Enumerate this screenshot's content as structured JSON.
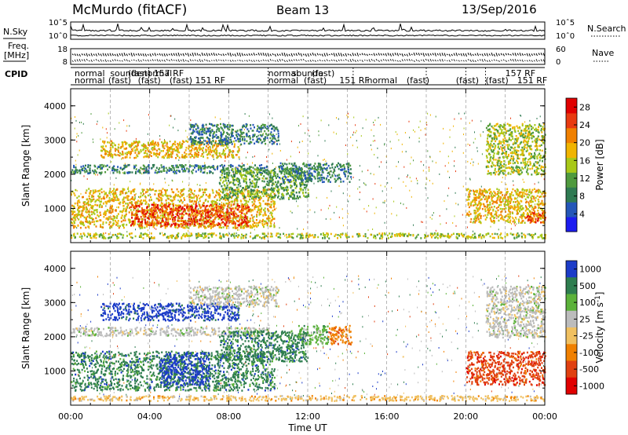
{
  "header": {
    "station": "McMurdo (fitACF)",
    "beam": "Beam 13",
    "date": "13/Sep/2016"
  },
  "aux_panel": {
    "nsky_label": "N.Sky",
    "nsearch_label": "N.Search",
    "freq_label": [
      "Freq.",
      "[MHz]"
    ],
    "nave_label": "Nave",
    "cpid_label": "CPID",
    "left_ticks": [
      "10^5",
      "10^0",
      "18",
      "8"
    ],
    "right_ticks": [
      "10^5",
      "10^0",
      "60",
      "0"
    ]
  },
  "cpid_labels": [
    {
      "t": 0.2,
      "row": 0,
      "text": "normal"
    },
    {
      "t": 2.0,
      "row": 0,
      "text": "sounde"
    },
    {
      "t": 2.9,
      "row": 0,
      "text": "(fast)"
    },
    {
      "t": 3.6,
      "row": 0,
      "text": "normal"
    },
    {
      "t": 4.2,
      "row": 0,
      "text": "157 RF"
    },
    {
      "t": 0.2,
      "row": 1,
      "text": "normal"
    },
    {
      "t": 1.9,
      "row": 1,
      "text": "(fast)"
    },
    {
      "t": 3.4,
      "row": 1,
      "text": "(fast)"
    },
    {
      "t": 5.0,
      "row": 1,
      "text": "(fast)"
    },
    {
      "t": 6.3,
      "row": 1,
      "text": "151 RF"
    },
    {
      "t": 10.0,
      "row": 0,
      "text": "normal"
    },
    {
      "t": 11.2,
      "row": 0,
      "text": "sounde"
    },
    {
      "t": 12.2,
      "row": 0,
      "text": "(fast)"
    },
    {
      "t": 10.0,
      "row": 1,
      "text": "normal"
    },
    {
      "t": 11.8,
      "row": 1,
      "text": "(fast)"
    },
    {
      "t": 13.6,
      "row": 1,
      "text": "151 RF"
    },
    {
      "t": 15.0,
      "row": 1,
      "text": "normal"
    },
    {
      "t": 17.0,
      "row": 1,
      "text": "(fast)"
    },
    {
      "t": 19.5,
      "row": 1,
      "text": "(fast)"
    },
    {
      "t": 21.0,
      "row": 1,
      "text": "(fast)"
    },
    {
      "t": 22.0,
      "row": 0,
      "text": "157 RF"
    },
    {
      "t": 22.6,
      "row": 1,
      "text": "151 RF"
    }
  ],
  "chart_data": [
    {
      "type": "heatmap",
      "name": "Power",
      "ylabel": "Slant Range [km]",
      "ylim": [
        0,
        4500
      ],
      "yticks": [
        1000,
        2000,
        3000,
        4000
      ],
      "xlim": [
        0,
        24
      ],
      "colorbar": {
        "label": "Power [dB]",
        "ticks": [
          4,
          8,
          12,
          16,
          20,
          24,
          28
        ],
        "range": [
          0,
          30
        ]
      },
      "colors": [
        "#1c1cf0",
        "#2456b8",
        "#2f7a52",
        "#4f9a3e",
        "#a8c818",
        "#f0b400",
        "#f08000",
        "#e83a10",
        "#e00000"
      ],
      "regions": [
        {
          "t0": 0.0,
          "t1": 10.3,
          "r0": 450,
          "r1": 1600,
          "v": 18
        },
        {
          "t0": 3.0,
          "t1": 9.0,
          "r0": 500,
          "r1": 1150,
          "v": 26
        },
        {
          "t0": 1.5,
          "t1": 8.5,
          "r0": 2500,
          "r1": 3000,
          "v": 17
        },
        {
          "t0": 0.0,
          "t1": 10.0,
          "r0": 2050,
          "r1": 2300,
          "v": 6
        },
        {
          "t0": 6.0,
          "t1": 10.5,
          "r0": 2900,
          "r1": 3500,
          "v": 7
        },
        {
          "t0": 7.5,
          "t1": 12.0,
          "r0": 1300,
          "r1": 2200,
          "v": 10
        },
        {
          "t0": 10.5,
          "t1": 14.2,
          "r0": 1800,
          "r1": 2350,
          "v": 8
        },
        {
          "t0": 20.0,
          "t1": 24.0,
          "r0": 600,
          "r1": 1600,
          "v": 19
        },
        {
          "t0": 23.0,
          "t1": 24.0,
          "r0": 600,
          "r1": 900,
          "v": 28
        },
        {
          "t0": 21.0,
          "t1": 24.0,
          "r0": 2000,
          "r1": 3500,
          "v": 16
        },
        {
          "t0": 0.0,
          "t1": 24.0,
          "r0": 150,
          "r1": 300,
          "v": 14
        }
      ]
    },
    {
      "type": "heatmap",
      "name": "Velocity",
      "ylabel": "Slant Range [km]",
      "ylim": [
        0,
        4500
      ],
      "yticks": [
        1000,
        2000,
        3000,
        4000
      ],
      "xlim": [
        0,
        24
      ],
      "xlabel": "Time UT",
      "xticks": [
        "00:00",
        "04:00",
        "08:00",
        "12:00",
        "16:00",
        "20:00",
        "00:00"
      ],
      "colorbar": {
        "label": "Velocity [m s^-1]",
        "ticks": [
          "1000",
          "500",
          "100",
          "25",
          "-25",
          "-100",
          "-500",
          "-1000"
        ]
      },
      "colors": [
        "#1c3cc8",
        "#2e7d4f",
        "#5cb23a",
        "#bcbcbc",
        "#f0c060",
        "#f08000",
        "#e04010",
        "#e00000"
      ],
      "regions": [
        {
          "t0": 0.0,
          "t1": 10.3,
          "r0": 450,
          "r1": 1600,
          "v": 500
        },
        {
          "t0": 4.5,
          "t1": 7.0,
          "r0": 600,
          "r1": 1550,
          "v": 1000
        },
        {
          "t0": 1.5,
          "t1": 8.5,
          "r0": 2500,
          "r1": 3000,
          "v": 1000
        },
        {
          "t0": 0.0,
          "t1": 10.0,
          "r0": 2050,
          "r1": 2300,
          "v": 25
        },
        {
          "t0": 6.0,
          "t1": 10.5,
          "r0": 2900,
          "r1": 3500,
          "v": 25
        },
        {
          "t0": 7.5,
          "t1": 12.0,
          "r0": 1300,
          "r1": 2200,
          "v": 500
        },
        {
          "t0": 11.5,
          "t1": 13.0,
          "r0": 1800,
          "r1": 2350,
          "v": 100
        },
        {
          "t0": 13.0,
          "t1": 14.2,
          "r0": 1800,
          "r1": 2350,
          "v": -100
        },
        {
          "t0": 20.0,
          "t1": 24.0,
          "r0": 600,
          "r1": 1600,
          "v": -500
        },
        {
          "t0": 21.0,
          "t1": 24.0,
          "r0": 2000,
          "r1": 3500,
          "v": 25
        },
        {
          "t0": 0.0,
          "t1": 24.0,
          "r0": 150,
          "r1": 300,
          "v": -25
        }
      ]
    }
  ]
}
